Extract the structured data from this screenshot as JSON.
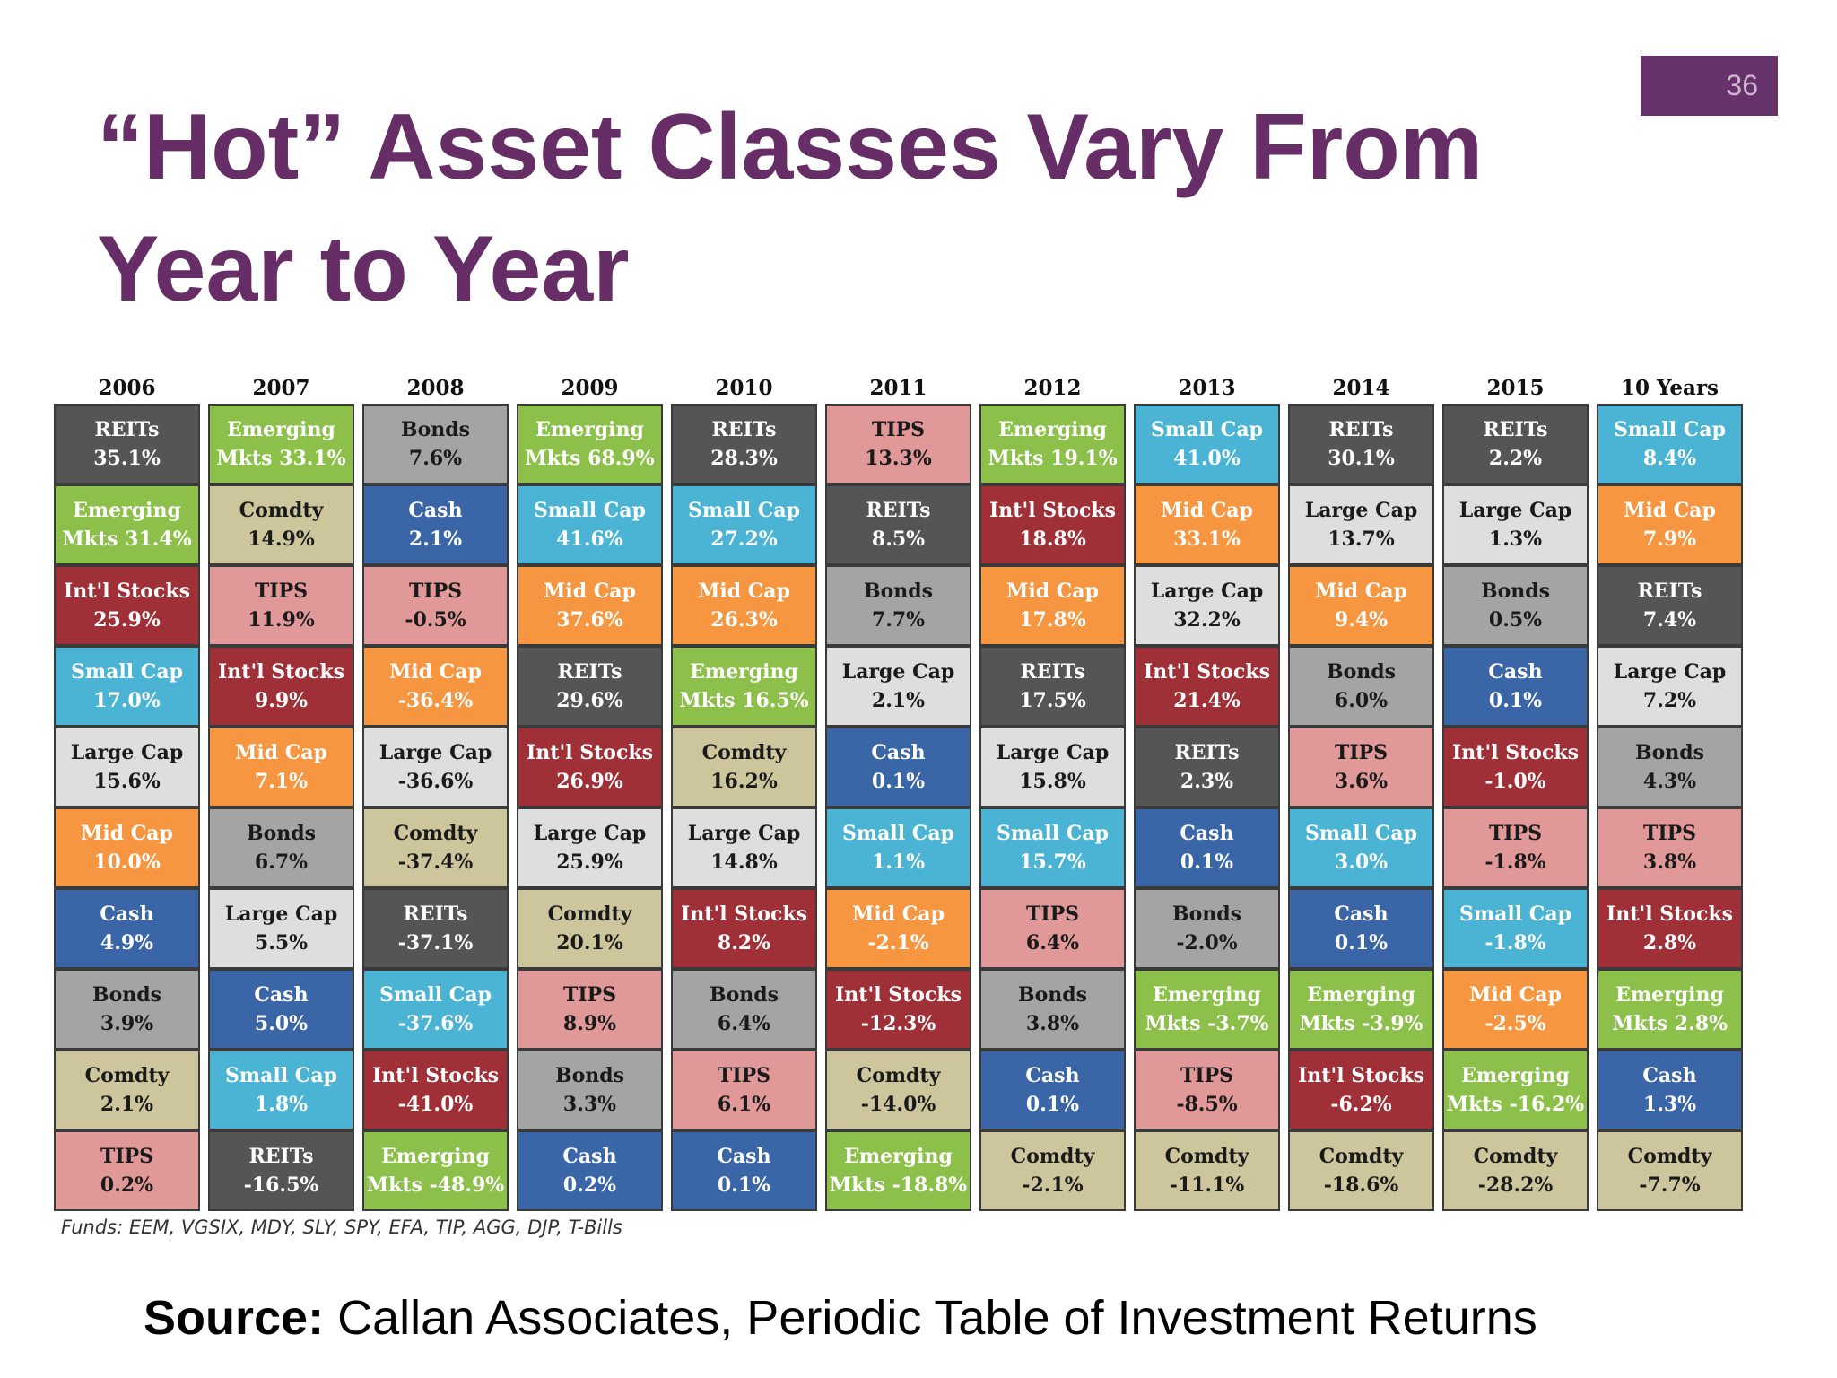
{
  "slide": {
    "number": "36",
    "title": "“Hot” Asset Classes Vary From Year to Year",
    "funds_note": "Funds: EEM, VGSIX, MDY, SLY, SPY, EFA, TIP, AGG, DJP, T-Bills",
    "source_label": "Source:",
    "source_text": " Callan Associates, Periodic Table of Investment Returns"
  },
  "colors": {
    "REITs": "#555555",
    "Emerging": "#8cc04a",
    "Int'l Stocks": "#a03037",
    "Small Cap": "#4bb3d3",
    "Large Cap": "#dedede",
    "Mid Cap": "#f79640",
    "Cash": "#3a66a8",
    "Bonds": "#a4a4a4",
    "Comdty": "#cdc59c",
    "TIPS": "#e19898"
  },
  "chart_data": {
    "type": "table",
    "categories": [
      "2006",
      "2007",
      "2008",
      "2009",
      "2010",
      "2011",
      "2012",
      "2013",
      "2014",
      "2015",
      "10 Years"
    ],
    "columns": [
      {
        "year": "2006",
        "cells": [
          {
            "asset": "REITs",
            "l1": "REITs",
            "l2": "35.1%",
            "value": 35.1
          },
          {
            "asset": "Emerging",
            "l1": "Emerging",
            "l2": "Mkts 31.4%",
            "value": 31.4
          },
          {
            "asset": "Int'l Stocks",
            "l1": "Int'l Stocks",
            "l2": "25.9%",
            "value": 25.9
          },
          {
            "asset": "Small Cap",
            "l1": "Small Cap",
            "l2": "17.0%",
            "value": 17.0
          },
          {
            "asset": "Large Cap",
            "l1": "Large Cap",
            "l2": "15.6%",
            "value": 15.6
          },
          {
            "asset": "Mid Cap",
            "l1": "Mid Cap",
            "l2": "10.0%",
            "value": 10.0
          },
          {
            "asset": "Cash",
            "l1": "Cash",
            "l2": "4.9%",
            "value": 4.9
          },
          {
            "asset": "Bonds",
            "l1": "Bonds",
            "l2": "3.9%",
            "value": 3.9
          },
          {
            "asset": "Comdty",
            "l1": "Comdty",
            "l2": "2.1%",
            "value": 2.1
          },
          {
            "asset": "TIPS",
            "l1": "TIPS",
            "l2": "0.2%",
            "value": 0.2
          }
        ]
      },
      {
        "year": "2007",
        "cells": [
          {
            "asset": "Emerging",
            "l1": "Emerging",
            "l2": "Mkts 33.1%",
            "value": 33.1
          },
          {
            "asset": "Comdty",
            "l1": "Comdty",
            "l2": "14.9%",
            "value": 14.9
          },
          {
            "asset": "TIPS",
            "l1": "TIPS",
            "l2": "11.9%",
            "value": 11.9
          },
          {
            "asset": "Int'l Stocks",
            "l1": "Int'l Stocks",
            "l2": "9.9%",
            "value": 9.9
          },
          {
            "asset": "Mid Cap",
            "l1": "Mid Cap",
            "l2": "7.1%",
            "value": 7.1
          },
          {
            "asset": "Bonds",
            "l1": "Bonds",
            "l2": "6.7%",
            "value": 6.7
          },
          {
            "asset": "Large Cap",
            "l1": "Large Cap",
            "l2": "5.5%",
            "value": 5.5
          },
          {
            "asset": "Cash",
            "l1": "Cash",
            "l2": "5.0%",
            "value": 5.0
          },
          {
            "asset": "Small Cap",
            "l1": "Small Cap",
            "l2": "1.8%",
            "value": 1.8
          },
          {
            "asset": "REITs",
            "l1": "REITs",
            "l2": "-16.5%",
            "value": -16.5
          }
        ]
      },
      {
        "year": "2008",
        "cells": [
          {
            "asset": "Bonds",
            "l1": "Bonds",
            "l2": "7.6%",
            "value": 7.6
          },
          {
            "asset": "Cash",
            "l1": "Cash",
            "l2": "2.1%",
            "value": 2.1
          },
          {
            "asset": "TIPS",
            "l1": "TIPS",
            "l2": "-0.5%",
            "value": -0.5
          },
          {
            "asset": "Mid Cap",
            "l1": "Mid Cap",
            "l2": "-36.4%",
            "value": -36.4
          },
          {
            "asset": "Large Cap",
            "l1": "Large Cap",
            "l2": "-36.6%",
            "value": -36.6
          },
          {
            "asset": "Comdty",
            "l1": "Comdty",
            "l2": "-37.4%",
            "value": -37.4
          },
          {
            "asset": "REITs",
            "l1": "REITs",
            "l2": "-37.1%",
            "value": -37.1
          },
          {
            "asset": "Small Cap",
            "l1": "Small Cap",
            "l2": "-37.6%",
            "value": -37.6
          },
          {
            "asset": "Int'l Stocks",
            "l1": "Int'l Stocks",
            "l2": "-41.0%",
            "value": -41.0
          },
          {
            "asset": "Emerging",
            "l1": "Emerging",
            "l2": "Mkts -48.9%",
            "value": -48.9
          }
        ]
      },
      {
        "year": "2009",
        "cells": [
          {
            "asset": "Emerging",
            "l1": "Emerging",
            "l2": "Mkts 68.9%",
            "value": 68.9
          },
          {
            "asset": "Small Cap",
            "l1": "Small Cap",
            "l2": "41.6%",
            "value": 41.6
          },
          {
            "asset": "Mid Cap",
            "l1": "Mid Cap",
            "l2": "37.6%",
            "value": 37.6
          },
          {
            "asset": "REITs",
            "l1": "REITs",
            "l2": "29.6%",
            "value": 29.6
          },
          {
            "asset": "Int'l Stocks",
            "l1": "Int'l Stocks",
            "l2": "26.9%",
            "value": 26.9
          },
          {
            "asset": "Large Cap",
            "l1": "Large Cap",
            "l2": "25.9%",
            "value": 25.9
          },
          {
            "asset": "Comdty",
            "l1": "Comdty",
            "l2": "20.1%",
            "value": 20.1
          },
          {
            "asset": "TIPS",
            "l1": "TIPS",
            "l2": "8.9%",
            "value": 8.9
          },
          {
            "asset": "Bonds",
            "l1": "Bonds",
            "l2": "3.3%",
            "value": 3.3
          },
          {
            "asset": "Cash",
            "l1": "Cash",
            "l2": "0.2%",
            "value": 0.2
          }
        ]
      },
      {
        "year": "2010",
        "cells": [
          {
            "asset": "REITs",
            "l1": "REITs",
            "l2": "28.3%",
            "value": 28.3
          },
          {
            "asset": "Small Cap",
            "l1": "Small Cap",
            "l2": "27.2%",
            "value": 27.2
          },
          {
            "asset": "Mid Cap",
            "l1": "Mid Cap",
            "l2": "26.3%",
            "value": 26.3
          },
          {
            "asset": "Emerging",
            "l1": "Emerging",
            "l2": "Mkts 16.5%",
            "value": 16.5
          },
          {
            "asset": "Comdty",
            "l1": "Comdty",
            "l2": "16.2%",
            "value": 16.2
          },
          {
            "asset": "Large Cap",
            "l1": "Large Cap",
            "l2": "14.8%",
            "value": 14.8
          },
          {
            "asset": "Int'l Stocks",
            "l1": "Int'l Stocks",
            "l2": "8.2%",
            "value": 8.2
          },
          {
            "asset": "Bonds",
            "l1": "Bonds",
            "l2": "6.4%",
            "value": 6.4
          },
          {
            "asset": "TIPS",
            "l1": "TIPS",
            "l2": "6.1%",
            "value": 6.1
          },
          {
            "asset": "Cash",
            "l1": "Cash",
            "l2": "0.1%",
            "value": 0.1
          }
        ]
      },
      {
        "year": "2011",
        "cells": [
          {
            "asset": "TIPS",
            "l1": "TIPS",
            "l2": "13.3%",
            "value": 13.3
          },
          {
            "asset": "REITs",
            "l1": "REITs",
            "l2": "8.5%",
            "value": 8.5
          },
          {
            "asset": "Bonds",
            "l1": "Bonds",
            "l2": "7.7%",
            "value": 7.7
          },
          {
            "asset": "Large Cap",
            "l1": "Large Cap",
            "l2": "2.1%",
            "value": 2.1
          },
          {
            "asset": "Cash",
            "l1": "Cash",
            "l2": "0.1%",
            "value": 0.1
          },
          {
            "asset": "Small Cap",
            "l1": "Small Cap",
            "l2": "1.1%",
            "value": 1.1
          },
          {
            "asset": "Mid Cap",
            "l1": "Mid Cap",
            "l2": "-2.1%",
            "value": -2.1
          },
          {
            "asset": "Int'l Stocks",
            "l1": "Int'l Stocks",
            "l2": "-12.3%",
            "value": -12.3
          },
          {
            "asset": "Comdty",
            "l1": "Comdty",
            "l2": "-14.0%",
            "value": -14.0
          },
          {
            "asset": "Emerging",
            "l1": "Emerging",
            "l2": "Mkts -18.8%",
            "value": -18.8
          }
        ]
      },
      {
        "year": "2012",
        "cells": [
          {
            "asset": "Emerging",
            "l1": "Emerging",
            "l2": "Mkts 19.1%",
            "value": 19.1
          },
          {
            "asset": "Int'l Stocks",
            "l1": "Int'l Stocks",
            "l2": "18.8%",
            "value": 18.8
          },
          {
            "asset": "Mid Cap",
            "l1": "Mid Cap",
            "l2": "17.8%",
            "value": 17.8
          },
          {
            "asset": "REITs",
            "l1": "REITs",
            "l2": "17.5%",
            "value": 17.5
          },
          {
            "asset": "Large Cap",
            "l1": "Large Cap",
            "l2": "15.8%",
            "value": 15.8
          },
          {
            "asset": "Small Cap",
            "l1": "Small Cap",
            "l2": "15.7%",
            "value": 15.7
          },
          {
            "asset": "TIPS",
            "l1": "TIPS",
            "l2": "6.4%",
            "value": 6.4
          },
          {
            "asset": "Bonds",
            "l1": "Bonds",
            "l2": "3.8%",
            "value": 3.8
          },
          {
            "asset": "Cash",
            "l1": "Cash",
            "l2": "0.1%",
            "value": 0.1
          },
          {
            "asset": "Comdty",
            "l1": "Comdty",
            "l2": "-2.1%",
            "value": -2.1
          }
        ]
      },
      {
        "year": "2013",
        "cells": [
          {
            "asset": "Small Cap",
            "l1": "Small Cap",
            "l2": "41.0%",
            "value": 41.0
          },
          {
            "asset": "Mid Cap",
            "l1": "Mid Cap",
            "l2": "33.1%",
            "value": 33.1
          },
          {
            "asset": "Large Cap",
            "l1": "Large Cap",
            "l2": "32.2%",
            "value": 32.2
          },
          {
            "asset": "Int'l Stocks",
            "l1": "Int'l Stocks",
            "l2": "21.4%",
            "value": 21.4
          },
          {
            "asset": "REITs",
            "l1": "REITs",
            "l2": "2.3%",
            "value": 2.3
          },
          {
            "asset": "Cash",
            "l1": "Cash",
            "l2": "0.1%",
            "value": 0.1
          },
          {
            "asset": "Bonds",
            "l1": "Bonds",
            "l2": "-2.0%",
            "value": -2.0
          },
          {
            "asset": "Emerging",
            "l1": "Emerging",
            "l2": "Mkts -3.7%",
            "value": -3.7
          },
          {
            "asset": "TIPS",
            "l1": "TIPS",
            "l2": "-8.5%",
            "value": -8.5
          },
          {
            "asset": "Comdty",
            "l1": "Comdty",
            "l2": "-11.1%",
            "value": -11.1
          }
        ]
      },
      {
        "year": "2014",
        "cells": [
          {
            "asset": "REITs",
            "l1": "REITs",
            "l2": "30.1%",
            "value": 30.1
          },
          {
            "asset": "Large Cap",
            "l1": "Large Cap",
            "l2": "13.7%",
            "value": 13.7
          },
          {
            "asset": "Mid Cap",
            "l1": "Mid Cap",
            "l2": "9.4%",
            "value": 9.4
          },
          {
            "asset": "Bonds",
            "l1": "Bonds",
            "l2": "6.0%",
            "value": 6.0
          },
          {
            "asset": "TIPS",
            "l1": "TIPS",
            "l2": "3.6%",
            "value": 3.6
          },
          {
            "asset": "Small Cap",
            "l1": "Small Cap",
            "l2": "3.0%",
            "value": 3.0
          },
          {
            "asset": "Cash",
            "l1": "Cash",
            "l2": "0.1%",
            "value": 0.1
          },
          {
            "asset": "Emerging",
            "l1": "Emerging",
            "l2": "Mkts -3.9%",
            "value": -3.9
          },
          {
            "asset": "Int'l Stocks",
            "l1": "Int'l Stocks",
            "l2": "-6.2%",
            "value": -6.2
          },
          {
            "asset": "Comdty",
            "l1": "Comdty",
            "l2": "-18.6%",
            "value": -18.6
          }
        ]
      },
      {
        "year": "2015",
        "cells": [
          {
            "asset": "REITs",
            "l1": "REITs",
            "l2": "2.2%",
            "value": 2.2
          },
          {
            "asset": "Large Cap",
            "l1": "Large Cap",
            "l2": "1.3%",
            "value": 1.3
          },
          {
            "asset": "Bonds",
            "l1": "Bonds",
            "l2": "0.5%",
            "value": 0.5
          },
          {
            "asset": "Cash",
            "l1": "Cash",
            "l2": "0.1%",
            "value": 0.1
          },
          {
            "asset": "Int'l Stocks",
            "l1": "Int'l Stocks",
            "l2": "-1.0%",
            "value": -1.0
          },
          {
            "asset": "TIPS",
            "l1": "TIPS",
            "l2": "-1.8%",
            "value": -1.8
          },
          {
            "asset": "Small Cap",
            "l1": "Small Cap",
            "l2": "-1.8%",
            "value": -1.8
          },
          {
            "asset": "Mid Cap",
            "l1": "Mid Cap",
            "l2": "-2.5%",
            "value": -2.5
          },
          {
            "asset": "Emerging",
            "l1": "Emerging",
            "l2": "Mkts -16.2%",
            "value": -16.2
          },
          {
            "asset": "Comdty",
            "l1": "Comdty",
            "l2": "-28.2%",
            "value": -28.2
          }
        ]
      },
      {
        "year": "10 Years",
        "cells": [
          {
            "asset": "Small Cap",
            "l1": "Small Cap",
            "l2": "8.4%",
            "value": 8.4
          },
          {
            "asset": "Mid Cap",
            "l1": "Mid Cap",
            "l2": "7.9%",
            "value": 7.9
          },
          {
            "asset": "REITs",
            "l1": "REITs",
            "l2": "7.4%",
            "value": 7.4
          },
          {
            "asset": "Large Cap",
            "l1": "Large Cap",
            "l2": "7.2%",
            "value": 7.2
          },
          {
            "asset": "Bonds",
            "l1": "Bonds",
            "l2": "4.3%",
            "value": 4.3
          },
          {
            "asset": "TIPS",
            "l1": "TIPS",
            "l2": "3.8%",
            "value": 3.8
          },
          {
            "asset": "Int'l Stocks",
            "l1": "Int'l Stocks",
            "l2": "2.8%",
            "value": 2.8
          },
          {
            "asset": "Emerging",
            "l1": "Emerging",
            "l2": "Mkts 2.8%",
            "value": 2.8
          },
          {
            "asset": "Cash",
            "l1": "Cash",
            "l2": "1.3%",
            "value": 1.3
          },
          {
            "asset": "Comdty",
            "l1": "Comdty",
            "l2": "-7.7%",
            "value": -7.7
          }
        ]
      }
    ]
  }
}
